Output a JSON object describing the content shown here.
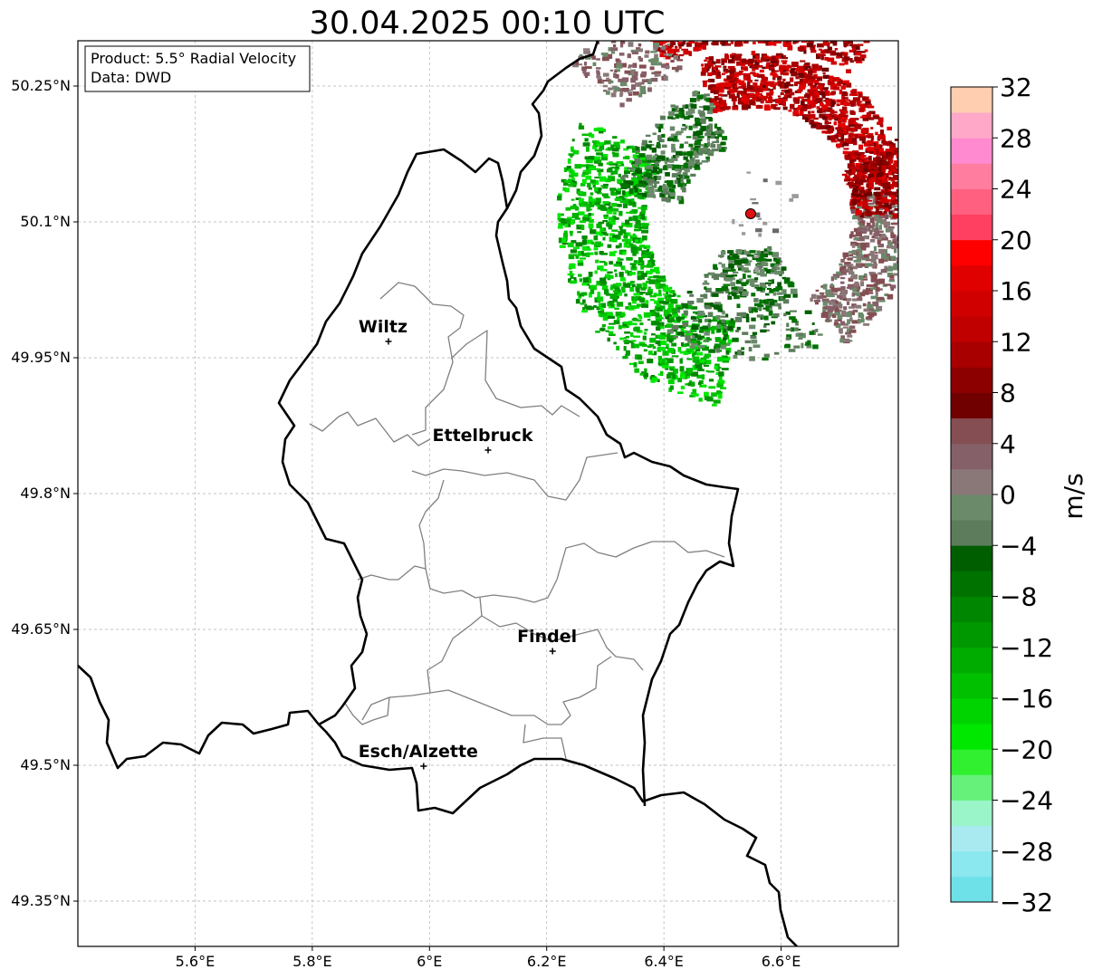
{
  "title": "30.04.2025 00:10 UTC",
  "info_box": {
    "line1": "Product: 5.5° Radial Velocity",
    "line2": "Data: DWD"
  },
  "map": {
    "lon_range": [
      5.4,
      6.8
    ],
    "lat_range": [
      49.3,
      50.3
    ],
    "x_ticks": [
      {
        "value": 5.6,
        "label": "5.6°E"
      },
      {
        "value": 5.8,
        "label": "5.8°E"
      },
      {
        "value": 6.0,
        "label": "6°E"
      },
      {
        "value": 6.2,
        "label": "6.2°E"
      },
      {
        "value": 6.4,
        "label": "6.4°E"
      },
      {
        "value": 6.6,
        "label": "6.6°E"
      }
    ],
    "y_ticks": [
      {
        "value": 49.35,
        "label": "49.35°N"
      },
      {
        "value": 49.5,
        "label": "49.5°N"
      },
      {
        "value": 49.65,
        "label": "49.65°N"
      },
      {
        "value": 49.8,
        "label": "49.8°N"
      },
      {
        "value": 49.95,
        "label": "49.95°N"
      },
      {
        "value": 50.1,
        "label": "50.1°N"
      },
      {
        "value": 50.25,
        "label": "50.25°N"
      }
    ],
    "grid": true,
    "cities": [
      {
        "name": "Wiltz",
        "lon": 5.93,
        "lat": 49.968
      },
      {
        "name": "Ettelbruck",
        "lon": 6.1,
        "lat": 49.848
      },
      {
        "name": "Findel",
        "lon": 6.21,
        "lat": 49.626
      },
      {
        "name": "Esch/Alzette",
        "lon": 5.99,
        "lat": 49.499
      }
    ],
    "radar_site": {
      "lon": 6.548,
      "lat": 50.109,
      "color": "#e01010"
    }
  },
  "colorbar": {
    "label": "m/s",
    "vmin": -32,
    "vmax": 32,
    "tick_values": [
      -32,
      -28,
      -24,
      -20,
      -16,
      -12,
      -8,
      -4,
      0,
      4,
      8,
      12,
      16,
      20,
      24,
      28,
      32
    ],
    "tick_labels": [
      "−32",
      "−28",
      "−24",
      "−20",
      "−16",
      "−12",
      "−8",
      "−4",
      "0",
      "4",
      "8",
      "12",
      "16",
      "20",
      "24",
      "28",
      "32"
    ],
    "colors": [
      "#6ee0e8",
      "#8ae8ee",
      "#a8eaf0",
      "#9af5c8",
      "#66f27a",
      "#30f030",
      "#00e800",
      "#00d400",
      "#00c000",
      "#00ac00",
      "#009800",
      "#008600",
      "#007200",
      "#005e00",
      "#5c7c5c",
      "#6a8a6a",
      "#8a7878",
      "#866068",
      "#844e52",
      "#700000",
      "#8c0000",
      "#a80000",
      "#c00000",
      "#d00000",
      "#e00000",
      "#ff0000",
      "#ff4060",
      "#ff6080",
      "#ff7ea0",
      "#ff8ad0",
      "#ffa8c8",
      "#ffcdb0"
    ]
  }
}
